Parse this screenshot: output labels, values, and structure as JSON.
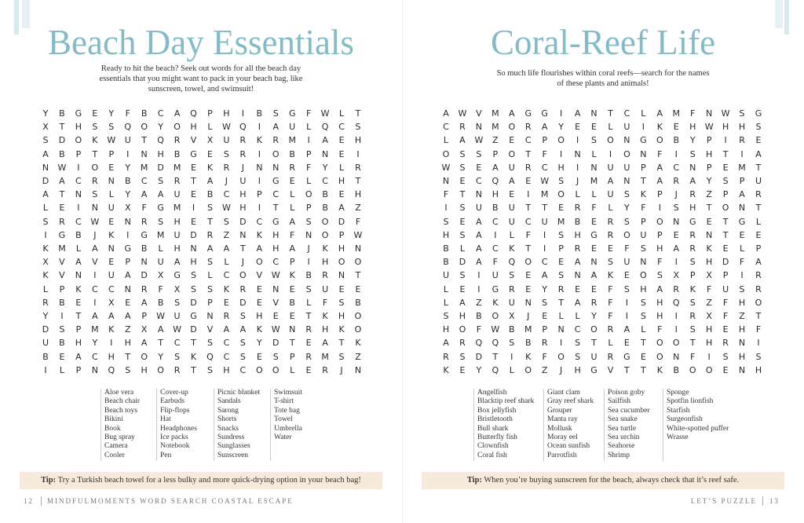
{
  "left": {
    "title": "Beach Day Essentials",
    "intro": [
      "Ready to hit the beach? Seek out words for all the beach day",
      "essentials that you might want to pack in your beach bag, like",
      "sunscreen, towel, and swimsuit!"
    ],
    "grid": [
      "YBGEYFBCAQPHIBSGFWLT",
      "XTHSSQOYOHLWQIAULQCS",
      "SDOKWUTQRVXURKRMIAEH",
      "ABPTPINHBGESRIOBPNEI",
      "NWIOEYMDMEKRJNNRFYLR",
      "DACRNBCSRTAJUIGELCHT",
      "ATNSLYAAUEBCHPCLOBEH",
      "LEINUXFGMISWHITLPBAZ",
      "SRCWENRSHETSDCGASODF",
      "IGBJKIGMUDRZNKHFNOPW",
      "KMLANGBLHNAATAHAJKHN",
      "XVAVEPNUAHSLJOCPIHOO",
      "KVNIUADXGSLCOVWKBRNT",
      "LPKCCNRFXSSKRENESUEE",
      "RBEIXEABSDPEDEVBLFSB",
      "YITAAAPWUGNRSHEETKHO",
      "DSPMKZXAWDVAAKWNRHKO",
      "UBHYIHATCTSCSYDTEATK",
      "BEACHTOYSKQCSESPRMSZ",
      "ILPNQSHORTSHCOOLERJN"
    ],
    "words": [
      [
        "Aloe vera",
        "Beach chair",
        "Beach toys",
        "Bikini",
        "Book",
        "Bug spray",
        "Camera",
        "Cooler"
      ],
      [
        "Cover-up",
        "Earbuds",
        "Flip-flops",
        "Hat",
        "Headphones",
        "Ice packs",
        "Notebook",
        "Pen"
      ],
      [
        "Picnic blanket",
        "Sandals",
        "Sarong",
        "Shorts",
        "Snacks",
        "Sundress",
        "Sunglasses",
        "Sunscreen"
      ],
      [
        "Swimsuit",
        "T-shirt",
        "Tote bag",
        "Towel",
        "Umbrella",
        "Water"
      ]
    ],
    "tip": {
      "label": "Tip:",
      "text": "Try a Turkish beach towel for a less bulky and more quick-drying option in your beach bag!"
    }
  },
  "right": {
    "title": "Coral-Reef Life",
    "intro": [
      "So much life flourishes within coral reefs—search for the names",
      "of these plants and animals!"
    ],
    "grid": [
      "AWVMAGGIANTCLAMFNWSG",
      "CRNMORAYEELUIKEHWHHS",
      "LAWZECPOISONGOBYPIRE",
      "OSSPOTFINLIONFISHTIA",
      "WSEAURCHINUUPACNPEMT",
      "NECQAEWSJMANTARAYSPU",
      "FTNHEIMOLLUSKPJRZPAR",
      "ISUBUTTERFLYFISHTONT",
      "SEACUCUMBERSPONGETGL",
      "HSAILFISHGROUPERNTEE",
      "BLACKTIPREEFSHARKELP",
      "BDAFQOCEANSUNFISHDFA",
      "USIUSEASNAKEOSXPXPIR",
      "LEIGREYREEFSHARKFUSR",
      "LAZKUNSTARFISHQSZFHO",
      "SHBOXJELLYFISHIRXFZT",
      "HOFWBMPNCORALFISHEHF",
      "ARQQSBRISTLETOOTHRNI",
      "RSDTIKFOSURGEONFISHS",
      "KEYQLOZJHGVTTKBOOENH"
    ],
    "words": [
      [
        "Angelfish",
        "Blacktip reef shark",
        "Box jellyfish",
        "Bristletooth",
        "Bull shark",
        "Butterfly fish",
        "Clownfish",
        "Coral fish"
      ],
      [
        "Giant clam",
        "Gray reef shark",
        "Grouper",
        "Manta ray",
        "Mollusk",
        "Moray eel",
        "Ocean sunfish",
        "Parrotfish"
      ],
      [
        "Poison goby",
        "Sailfish",
        "Sea cucumber",
        "Sea snake",
        "Sea turtle",
        "Sea urchin",
        "Seahorse",
        "Shrimp"
      ],
      [
        "Sponge",
        "Spotfin lionfish",
        "Starfish",
        "Surgeonfish",
        "White-spotted puffer",
        "Wrasse"
      ]
    ],
    "tip": {
      "label": "Tip:",
      "text": "When you’re buying sunscreen for the beach, always check that it’s reef safe."
    }
  },
  "footer": {
    "left_page": "12",
    "left_text": "MINDFULMOMENTS WORD SEARCH COASTAL ESCAPE",
    "right_text": "LET’S PUZZLE",
    "right_page": "13"
  }
}
